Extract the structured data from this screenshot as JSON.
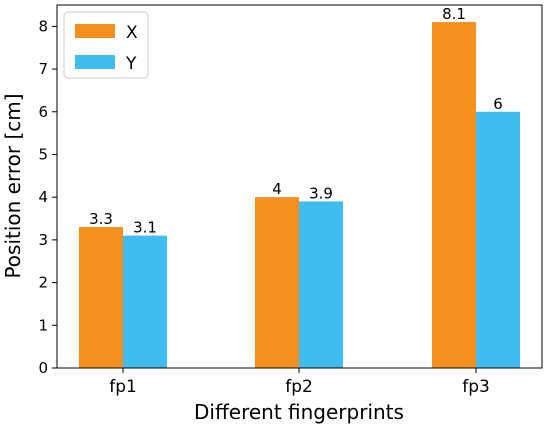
{
  "chart_data": {
    "type": "bar",
    "categories": [
      "fp1",
      "fp2",
      "fp3"
    ],
    "series": [
      {
        "name": "X",
        "values": [
          3.3,
          4,
          8.1
        ],
        "color": "#f5901e",
        "data_labels": [
          "3.3",
          "4",
          "8.1"
        ]
      },
      {
        "name": "Y",
        "values": [
          3.1,
          3.9,
          6
        ],
        "color": "#3fbdee",
        "data_labels": [
          "3.1",
          "3.9",
          "6"
        ]
      }
    ],
    "xlabel": "Different fingerprints",
    "ylabel": "Position error [cm]",
    "ylim": [
      0,
      8.5
    ],
    "yticks": [
      "0",
      "1",
      "2",
      "3",
      "4",
      "5",
      "6",
      "7",
      "8"
    ],
    "grid": false,
    "legend_position": "top-left"
  }
}
